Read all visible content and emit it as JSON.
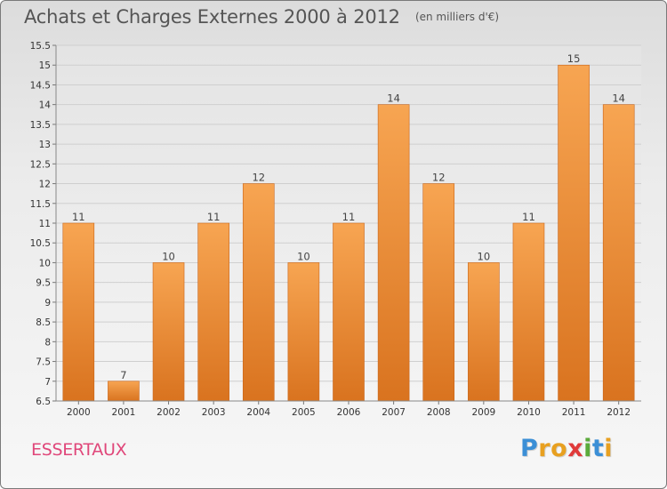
{
  "header": {
    "title": "Achats et Charges Externes 2000 à 2012",
    "subtitle": "(en milliers d'€)"
  },
  "footer": {
    "commune": "ESSERTAUX",
    "logo_letters": [
      "P",
      "r",
      "o",
      "x",
      "i",
      "t",
      "i"
    ],
    "logo_colors": [
      "#3b8fd6",
      "#e8a020",
      "#e8a020",
      "#e03a3a",
      "#5aaa3a",
      "#3b8fd6",
      "#e8a020"
    ]
  },
  "chart_data": {
    "type": "bar",
    "categories": [
      "2000",
      "2001",
      "2002",
      "2003",
      "2004",
      "2005",
      "2006",
      "2007",
      "2008",
      "2009",
      "2010",
      "2011",
      "2012"
    ],
    "values": [
      11,
      7,
      10,
      11,
      12,
      10,
      11,
      14,
      12,
      10,
      11,
      15,
      14
    ],
    "value_labels": [
      "11",
      "7",
      "10",
      "11",
      "12",
      "10",
      "11",
      "14",
      "12",
      "10",
      "11",
      "15",
      "14"
    ],
    "ylim": [
      6.5,
      15.5
    ],
    "yticks": [
      6.5,
      7,
      7.5,
      8,
      8.5,
      9,
      9.5,
      10,
      10.5,
      11,
      11.5,
      12,
      12.5,
      13,
      13.5,
      14,
      14.5,
      15,
      15.5
    ],
    "ytick_labels": [
      "6.5",
      "7",
      "7.5",
      "8",
      "8.5",
      "9",
      "9.5",
      "10",
      "10.5",
      "11",
      "11.5",
      "12",
      "12.5",
      "13",
      "13.5",
      "14",
      "14.5",
      "15",
      "15.5"
    ],
    "grid": true,
    "bar_color_top": "#f7a552",
    "bar_color_bottom": "#d9731f",
    "title": "Achats et Charges Externes 2000 à 2012",
    "xlabel": "",
    "ylabel": ""
  }
}
